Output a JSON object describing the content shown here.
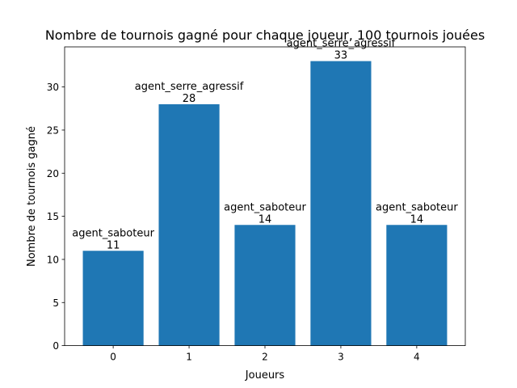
{
  "chart_data": {
    "type": "bar",
    "title": "Nombre de tournois gagné pour chaque joueur, 100 tournois jouées",
    "xlabel": "Joueurs",
    "ylabel": "Nombre de tournois gagné",
    "categories": [
      "0",
      "1",
      "2",
      "3",
      "4"
    ],
    "values": [
      11,
      28,
      14,
      33,
      14
    ],
    "bar_labels": [
      "agent_saboteur",
      "agent_serre_agressif",
      "agent_saboteur",
      "agent_serre_agressif",
      "agent_saboteur"
    ],
    "ylim": [
      0,
      34.65
    ],
    "yticks": [
      0,
      5,
      10,
      15,
      20,
      25,
      30
    ],
    "bar_color": "#1f77b4",
    "grid": false,
    "legend": "none"
  }
}
